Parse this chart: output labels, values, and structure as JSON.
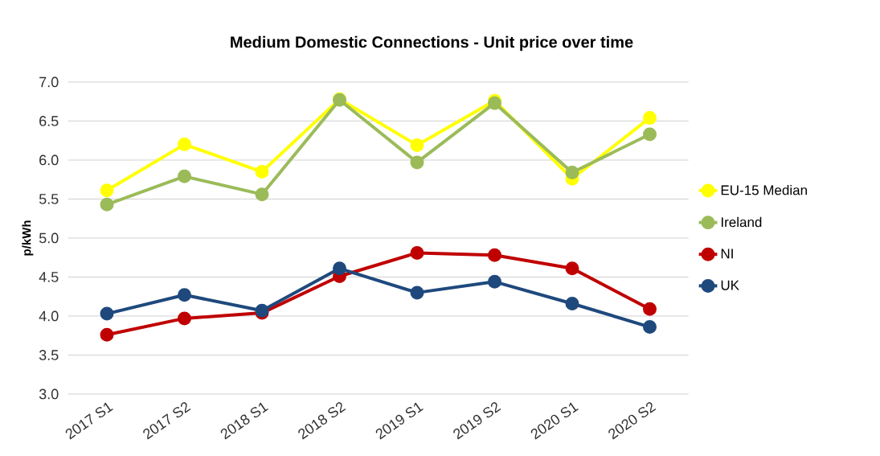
{
  "chart_data": {
    "type": "line",
    "title": "Medium Domestic Connections - Unit price over time",
    "ylabel": "p/kWh",
    "categories": [
      "2017 S1",
      "2017 S2",
      "2018 S1",
      "2018 S2",
      "2019 S1",
      "2019 S2",
      "2020 S1",
      "2020 S2"
    ],
    "series": [
      {
        "name": "EU-15 Median",
        "color": "#ffff00",
        "values": [
          5.61,
          6.2,
          5.85,
          6.78,
          6.19,
          6.76,
          5.76,
          6.54
        ]
      },
      {
        "name": "Ireland",
        "color": "#9bbb59",
        "values": [
          5.43,
          5.79,
          5.56,
          6.77,
          5.97,
          6.73,
          5.84,
          6.33
        ]
      },
      {
        "name": "NI",
        "color": "#c00000",
        "values": [
          3.76,
          3.97,
          4.04,
          4.51,
          4.81,
          4.78,
          4.61,
          4.09
        ]
      },
      {
        "name": "UK",
        "color": "#1f497d",
        "values": [
          4.03,
          4.27,
          4.07,
          4.61,
          4.3,
          4.44,
          4.16,
          3.86
        ]
      }
    ],
    "ylim": [
      3.0,
      7.0
    ],
    "yticks": [
      {
        "value": 3,
        "label": "3.0"
      },
      {
        "value": 3.5,
        "label": "3.5"
      },
      {
        "value": 4,
        "label": "4.0"
      },
      {
        "value": 4.5,
        "label": "4.5"
      },
      {
        "value": 5,
        "label": "5.0"
      },
      {
        "value": 5.5,
        "label": "5.5"
      },
      {
        "value": 6,
        "label": "6.0"
      },
      {
        "value": 6.5,
        "label": "6.5"
      },
      {
        "value": 7,
        "label": "7.0"
      }
    ],
    "grid": "y",
    "legend": "right",
    "marker": "circle",
    "line_style": "solid"
  }
}
